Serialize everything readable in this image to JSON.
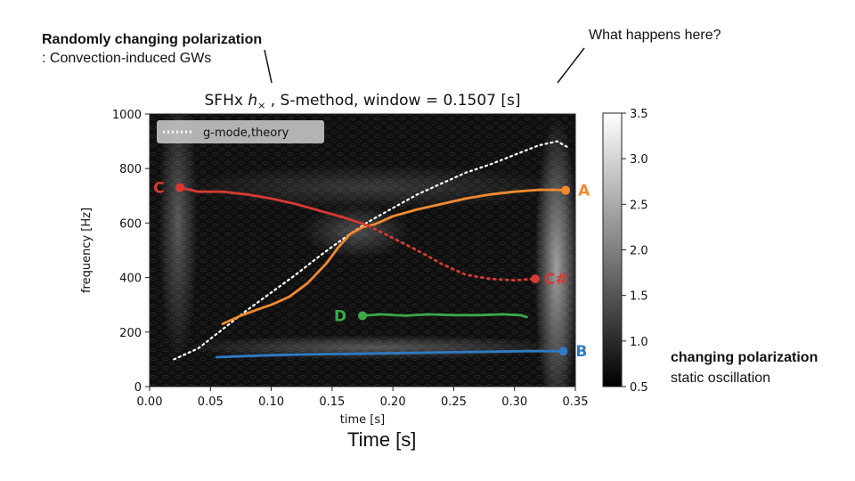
{
  "annotations": {
    "convection_bold": "Randomly changing polarization",
    "convection_rest": ": Convection-induced GWs",
    "question": "What happens here?",
    "static_bold": "changing polarization",
    "static_rest": "static oscillation",
    "time_caption": "Time [s]"
  },
  "chart_data": {
    "type": "heatmap",
    "title": "SFHx h× , S-method, window = 0.1507 [s]",
    "title_parts": {
      "prefix": "SFHx ",
      "symbol": "h",
      "subscript": "×",
      "suffix": " , S-method, window = 0.1507 [s]"
    },
    "xlabel": "time [s]",
    "ylabel": "frequency [Hz]",
    "xlim": [
      0.0,
      0.35
    ],
    "ylim": [
      0,
      1000
    ],
    "x_ticks": [
      "0.00",
      "0.05",
      "0.10",
      "0.15",
      "0.20",
      "0.25",
      "0.30",
      "0.35"
    ],
    "y_ticks": [
      "0",
      "200",
      "400",
      "600",
      "800",
      "1000"
    ],
    "colorbar": {
      "ticks": [
        "0.5",
        "1.0",
        "1.5",
        "2.0",
        "2.5",
        "3.0",
        "3.5"
      ],
      "range": [
        0.5,
        3.5
      ],
      "cmap": "gray"
    },
    "legend": {
      "entries": [
        "g-mode,theory"
      ],
      "placement": "top-left"
    },
    "grid": false,
    "series": [
      {
        "name": "g-mode,theory",
        "style": "dotted",
        "color": "#ffffff",
        "x": [
          0.02,
          0.04,
          0.06,
          0.08,
          0.1,
          0.12,
          0.14,
          0.16,
          0.18,
          0.2,
          0.22,
          0.24,
          0.26,
          0.28,
          0.3,
          0.32,
          0.335,
          0.343
        ],
        "y": [
          100,
          140,
          210,
          280,
          345,
          410,
          480,
          545,
          605,
          655,
          705,
          745,
          785,
          815,
          850,
          885,
          900,
          880
        ]
      },
      {
        "label": "A",
        "color": "#f28a2e",
        "style": "solid",
        "x": [
          0.06,
          0.075,
          0.09,
          0.1,
          0.115,
          0.13,
          0.145,
          0.155,
          0.165,
          0.175,
          0.185,
          0.2,
          0.22,
          0.24,
          0.26,
          0.28,
          0.3,
          0.32,
          0.335,
          0.342
        ],
        "y": [
          230,
          260,
          285,
          300,
          330,
          380,
          450,
          510,
          560,
          585,
          595,
          625,
          650,
          670,
          690,
          705,
          715,
          722,
          722,
          720
        ],
        "marker": {
          "x": 0.342,
          "y": 720
        }
      },
      {
        "label": "C",
        "color": "#d63a32",
        "style": "solid",
        "x": [
          0.025,
          0.04,
          0.06,
          0.08,
          0.1,
          0.12,
          0.14,
          0.16,
          0.17,
          0.18
        ],
        "y": [
          730,
          715,
          715,
          705,
          690,
          670,
          645,
          620,
          605,
          590
        ],
        "marker": {
          "x": 0.025,
          "y": 730
        }
      },
      {
        "label": "C#",
        "color": "#d63a32",
        "style": "dotted",
        "x": [
          0.18,
          0.2,
          0.22,
          0.24,
          0.26,
          0.28,
          0.3,
          0.317
        ],
        "y": [
          590,
          545,
          500,
          450,
          410,
          395,
          390,
          395
        ],
        "marker": {
          "x": 0.317,
          "y": 395
        }
      },
      {
        "label": "D",
        "color": "#3aaa4a",
        "style": "solid",
        "x": [
          0.175,
          0.19,
          0.21,
          0.23,
          0.25,
          0.27,
          0.29,
          0.305,
          0.31
        ],
        "y": [
          260,
          265,
          260,
          265,
          262,
          262,
          265,
          262,
          255
        ],
        "marker": {
          "x": 0.175,
          "y": 260
        }
      },
      {
        "label": "B",
        "color": "#2f7bc4",
        "style": "solid",
        "x": [
          0.055,
          0.08,
          0.1,
          0.13,
          0.16,
          0.19,
          0.22,
          0.25,
          0.28,
          0.31,
          0.34
        ],
        "y": [
          108,
          112,
          115,
          118,
          120,
          122,
          124,
          126,
          128,
          130,
          130
        ],
        "marker": {
          "x": 0.34,
          "y": 130
        }
      }
    ]
  }
}
